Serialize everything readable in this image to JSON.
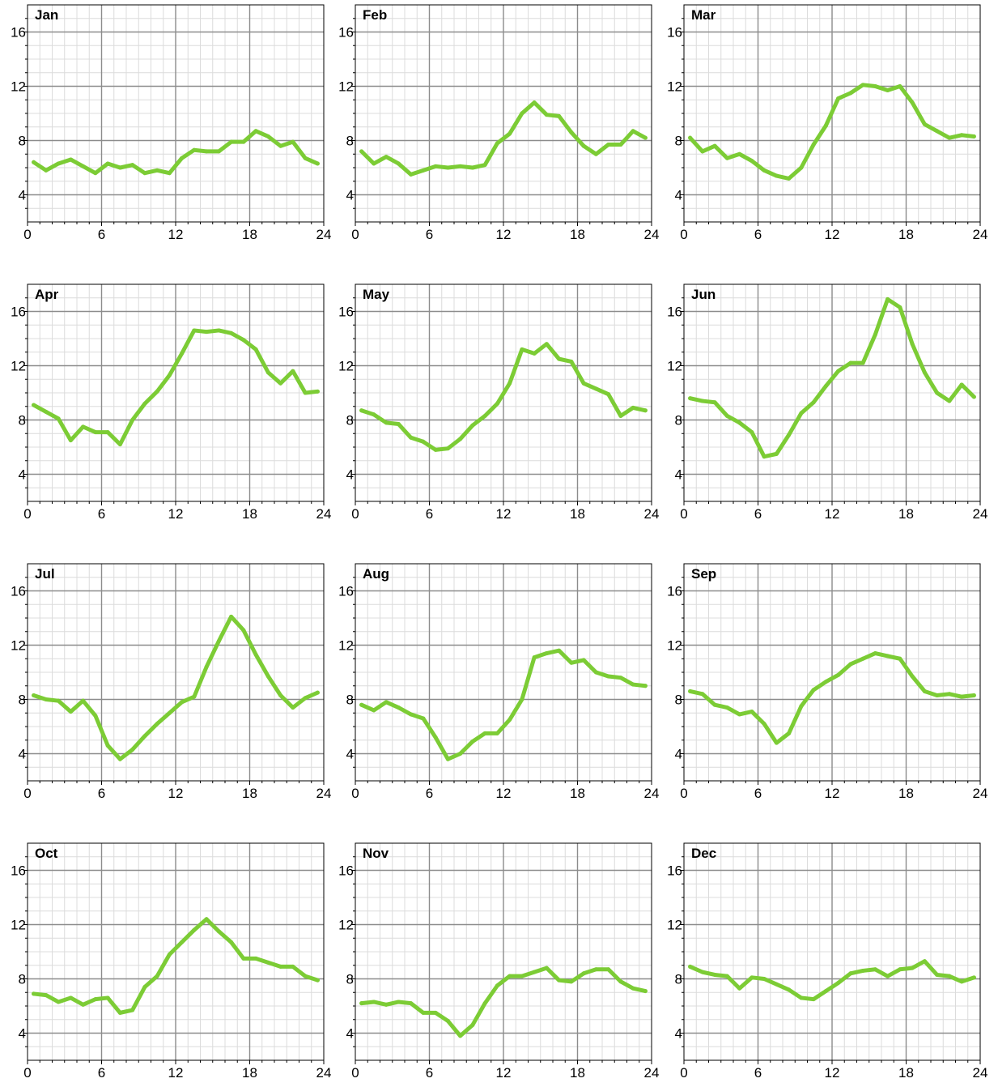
{
  "chart_data": [
    {
      "type": "line",
      "title": "Jan",
      "xlim": [
        0,
        24
      ],
      "ylim": [
        2,
        18
      ],
      "xticks": [
        0,
        6,
        12,
        18,
        24
      ],
      "yticks": [
        4,
        8,
        12,
        16
      ],
      "grid": true,
      "line_color": "#7ccc35",
      "x": [
        0.5,
        1.5,
        2.5,
        3.5,
        4.5,
        5.5,
        6.5,
        7.5,
        8.5,
        9.5,
        10.5,
        11.5,
        12.5,
        13.5,
        14.5,
        15.5,
        16.5,
        17.5,
        18.5,
        19.5,
        20.5,
        21.5,
        22.5,
        23.5
      ],
      "y": [
        6.4,
        5.8,
        6.3,
        6.6,
        6.1,
        5.6,
        6.3,
        6.0,
        6.2,
        5.6,
        5.8,
        5.6,
        6.7,
        7.3,
        7.2,
        7.2,
        7.9,
        7.9,
        8.7,
        8.3,
        7.6,
        7.9,
        6.7,
        6.3
      ]
    },
    {
      "type": "line",
      "title": "Feb",
      "xlim": [
        0,
        24
      ],
      "ylim": [
        2,
        18
      ],
      "xticks": [
        0,
        6,
        12,
        18,
        24
      ],
      "yticks": [
        4,
        8,
        12,
        16
      ],
      "grid": true,
      "line_color": "#7ccc35",
      "x": [
        0.5,
        1.5,
        2.5,
        3.5,
        4.5,
        5.5,
        6.5,
        7.5,
        8.5,
        9.5,
        10.5,
        11.5,
        12.5,
        13.5,
        14.5,
        15.5,
        16.5,
        17.5,
        18.5,
        19.5,
        20.5,
        21.5,
        22.5,
        23.5
      ],
      "y": [
        7.2,
        6.3,
        6.8,
        6.3,
        5.5,
        5.8,
        6.1,
        6.0,
        6.1,
        6.0,
        6.2,
        7.8,
        8.5,
        10.0,
        10.8,
        9.9,
        9.8,
        8.6,
        7.6,
        7.0,
        7.7,
        7.7,
        8.7,
        8.2
      ]
    },
    {
      "type": "line",
      "title": "Mar",
      "xlim": [
        0,
        24
      ],
      "ylim": [
        2,
        18
      ],
      "xticks": [
        0,
        6,
        12,
        18,
        24
      ],
      "yticks": [
        4,
        8,
        12,
        16
      ],
      "grid": true,
      "line_color": "#7ccc35",
      "x": [
        0.5,
        1.5,
        2.5,
        3.5,
        4.5,
        5.5,
        6.5,
        7.5,
        8.5,
        9.5,
        10.5,
        11.5,
        12.5,
        13.5,
        14.5,
        15.5,
        16.5,
        17.5,
        18.5,
        19.5,
        20.5,
        21.5,
        22.5,
        23.5
      ],
      "y": [
        8.2,
        7.2,
        7.6,
        6.7,
        7.0,
        6.5,
        5.8,
        5.4,
        5.2,
        6.0,
        7.7,
        9.1,
        11.1,
        11.5,
        12.1,
        12.0,
        11.7,
        12.0,
        10.8,
        9.2,
        8.7,
        8.2,
        8.4,
        8.3
      ]
    },
    {
      "type": "line",
      "title": "Apr",
      "xlim": [
        0,
        24
      ],
      "ylim": [
        2,
        18
      ],
      "xticks": [
        0,
        6,
        12,
        18,
        24
      ],
      "yticks": [
        4,
        8,
        12,
        16
      ],
      "grid": true,
      "line_color": "#7ccc35",
      "x": [
        0.5,
        1.5,
        2.5,
        3.5,
        4.5,
        5.5,
        6.5,
        7.5,
        8.5,
        9.5,
        10.5,
        11.5,
        12.5,
        13.5,
        14.5,
        15.5,
        16.5,
        17.5,
        18.5,
        19.5,
        20.5,
        21.5,
        22.5,
        23.5
      ],
      "y": [
        9.1,
        8.6,
        8.1,
        6.5,
        7.5,
        7.1,
        7.1,
        6.2,
        8.0,
        9.2,
        10.1,
        11.3,
        12.9,
        14.6,
        14.5,
        14.6,
        14.4,
        13.9,
        13.2,
        11.5,
        10.7,
        11.6,
        10.0,
        10.1
      ]
    },
    {
      "type": "line",
      "title": "May",
      "xlim": [
        0,
        24
      ],
      "ylim": [
        2,
        18
      ],
      "xticks": [
        0,
        6,
        12,
        18,
        24
      ],
      "yticks": [
        4,
        8,
        12,
        16
      ],
      "grid": true,
      "line_color": "#7ccc35",
      "x": [
        0.5,
        1.5,
        2.5,
        3.5,
        4.5,
        5.5,
        6.5,
        7.5,
        8.5,
        9.5,
        10.5,
        11.5,
        12.5,
        13.5,
        14.5,
        15.5,
        16.5,
        17.5,
        18.5,
        19.5,
        20.5,
        21.5,
        22.5,
        23.5
      ],
      "y": [
        8.7,
        8.4,
        7.8,
        7.7,
        6.7,
        6.4,
        5.8,
        5.9,
        6.6,
        7.6,
        8.3,
        9.2,
        10.7,
        13.2,
        12.9,
        13.6,
        12.5,
        12.3,
        10.7,
        10.3,
        9.9,
        8.3,
        8.9,
        8.7
      ]
    },
    {
      "type": "line",
      "title": "Jun",
      "xlim": [
        0,
        24
      ],
      "ylim": [
        2,
        18
      ],
      "xticks": [
        0,
        6,
        12,
        18,
        24
      ],
      "yticks": [
        4,
        8,
        12,
        16
      ],
      "grid": true,
      "line_color": "#7ccc35",
      "x": [
        0.5,
        1.5,
        2.5,
        3.5,
        4.5,
        5.5,
        6.5,
        7.5,
        8.5,
        9.5,
        10.5,
        11.5,
        12.5,
        13.5,
        14.5,
        15.5,
        16.5,
        17.5,
        18.5,
        19.5,
        20.5,
        21.5,
        22.5,
        23.5
      ],
      "y": [
        9.6,
        9.4,
        9.3,
        8.3,
        7.8,
        7.1,
        5.3,
        5.5,
        6.9,
        8.5,
        9.3,
        10.5,
        11.6,
        12.2,
        12.2,
        14.3,
        16.9,
        16.3,
        13.6,
        11.5,
        10.0,
        9.4,
        10.6,
        9.7
      ]
    },
    {
      "type": "line",
      "title": "Jul",
      "xlim": [
        0,
        24
      ],
      "ylim": [
        2,
        18
      ],
      "xticks": [
        0,
        6,
        12,
        18,
        24
      ],
      "yticks": [
        4,
        8,
        12,
        16
      ],
      "grid": true,
      "line_color": "#7ccc35",
      "x": [
        0.5,
        1.5,
        2.5,
        3.5,
        4.5,
        5.5,
        6.5,
        7.5,
        8.5,
        9.5,
        10.5,
        11.5,
        12.5,
        13.5,
        14.5,
        15.5,
        16.5,
        17.5,
        18.5,
        19.5,
        20.5,
        21.5,
        22.5,
        23.5
      ],
      "y": [
        8.3,
        8.0,
        7.9,
        7.1,
        7.9,
        6.8,
        4.6,
        3.6,
        4.3,
        5.3,
        6.2,
        7.0,
        7.8,
        8.2,
        10.4,
        12.3,
        14.1,
        13.1,
        11.3,
        9.7,
        8.3,
        7.4,
        8.1,
        8.5
      ]
    },
    {
      "type": "line",
      "title": "Aug",
      "xlim": [
        0,
        24
      ],
      "ylim": [
        2,
        18
      ],
      "xticks": [
        0,
        6,
        12,
        18,
        24
      ],
      "yticks": [
        4,
        8,
        12,
        16
      ],
      "grid": true,
      "line_color": "#7ccc35",
      "x": [
        0.5,
        1.5,
        2.5,
        3.5,
        4.5,
        5.5,
        6.5,
        7.5,
        8.5,
        9.5,
        10.5,
        11.5,
        12.5,
        13.5,
        14.5,
        15.5,
        16.5,
        17.5,
        18.5,
        19.5,
        20.5,
        21.5,
        22.5,
        23.5
      ],
      "y": [
        7.6,
        7.2,
        7.8,
        7.4,
        6.9,
        6.6,
        5.2,
        3.6,
        4.0,
        4.9,
        5.5,
        5.5,
        6.5,
        8.0,
        11.1,
        11.4,
        11.6,
        10.7,
        10.9,
        10.0,
        9.7,
        9.6,
        9.1,
        9.0
      ]
    },
    {
      "type": "line",
      "title": "Sep",
      "xlim": [
        0,
        24
      ],
      "ylim": [
        2,
        18
      ],
      "xticks": [
        0,
        6,
        12,
        18,
        24
      ],
      "yticks": [
        4,
        8,
        12,
        16
      ],
      "grid": true,
      "line_color": "#7ccc35",
      "x": [
        0.5,
        1.5,
        2.5,
        3.5,
        4.5,
        5.5,
        6.5,
        7.5,
        8.5,
        9.5,
        10.5,
        11.5,
        12.5,
        13.5,
        14.5,
        15.5,
        16.5,
        17.5,
        18.5,
        19.5,
        20.5,
        21.5,
        22.5,
        23.5
      ],
      "y": [
        8.6,
        8.4,
        7.6,
        7.4,
        6.9,
        7.1,
        6.2,
        4.8,
        5.5,
        7.5,
        8.7,
        9.3,
        9.8,
        10.6,
        11.0,
        11.4,
        11.2,
        11.0,
        9.7,
        8.6,
        8.3,
        8.4,
        8.2,
        8.3
      ]
    },
    {
      "type": "line",
      "title": "Oct",
      "xlim": [
        0,
        24
      ],
      "ylim": [
        2,
        18
      ],
      "xticks": [
        0,
        6,
        12,
        18,
        24
      ],
      "yticks": [
        4,
        8,
        12,
        16
      ],
      "grid": true,
      "line_color": "#7ccc35",
      "x": [
        0.5,
        1.5,
        2.5,
        3.5,
        4.5,
        5.5,
        6.5,
        7.5,
        8.5,
        9.5,
        10.5,
        11.5,
        12.5,
        13.5,
        14.5,
        15.5,
        16.5,
        17.5,
        18.5,
        19.5,
        20.5,
        21.5,
        22.5,
        23.5
      ],
      "y": [
        6.9,
        6.8,
        6.3,
        6.6,
        6.1,
        6.5,
        6.6,
        5.5,
        5.7,
        7.4,
        8.2,
        9.8,
        10.7,
        11.6,
        12.4,
        11.5,
        10.7,
        9.5,
        9.5,
        9.2,
        8.9,
        8.9,
        8.2,
        7.9
      ]
    },
    {
      "type": "line",
      "title": "Nov",
      "xlim": [
        0,
        24
      ],
      "ylim": [
        2,
        18
      ],
      "xticks": [
        0,
        6,
        12,
        18,
        24
      ],
      "yticks": [
        4,
        8,
        12,
        16
      ],
      "grid": true,
      "line_color": "#7ccc35",
      "x": [
        0.5,
        1.5,
        2.5,
        3.5,
        4.5,
        5.5,
        6.5,
        7.5,
        8.5,
        9.5,
        10.5,
        11.5,
        12.5,
        13.5,
        14.5,
        15.5,
        16.5,
        17.5,
        18.5,
        19.5,
        20.5,
        21.5,
        22.5,
        23.5
      ],
      "y": [
        6.2,
        6.3,
        6.1,
        6.3,
        6.2,
        5.5,
        5.5,
        4.9,
        3.8,
        4.6,
        6.2,
        7.5,
        8.2,
        8.2,
        8.5,
        8.8,
        7.9,
        7.8,
        8.4,
        8.7,
        8.7,
        7.8,
        7.3,
        7.1
      ]
    },
    {
      "type": "line",
      "title": "Dec",
      "xlim": [
        0,
        24
      ],
      "ylim": [
        2,
        18
      ],
      "xticks": [
        0,
        6,
        12,
        18,
        24
      ],
      "yticks": [
        4,
        8,
        12,
        16
      ],
      "grid": true,
      "line_color": "#7ccc35",
      "x": [
        0.5,
        1.5,
        2.5,
        3.5,
        4.5,
        5.5,
        6.5,
        7.5,
        8.5,
        9.5,
        10.5,
        11.5,
        12.5,
        13.5,
        14.5,
        15.5,
        16.5,
        17.5,
        18.5,
        19.5,
        20.5,
        21.5,
        22.5,
        23.5
      ],
      "y": [
        8.9,
        8.5,
        8.3,
        8.2,
        7.3,
        8.1,
        8.0,
        7.6,
        7.2,
        6.6,
        6.5,
        7.1,
        7.7,
        8.4,
        8.6,
        8.7,
        8.2,
        8.7,
        8.8,
        9.3,
        8.3,
        8.2,
        7.8,
        8.1
      ]
    }
  ]
}
